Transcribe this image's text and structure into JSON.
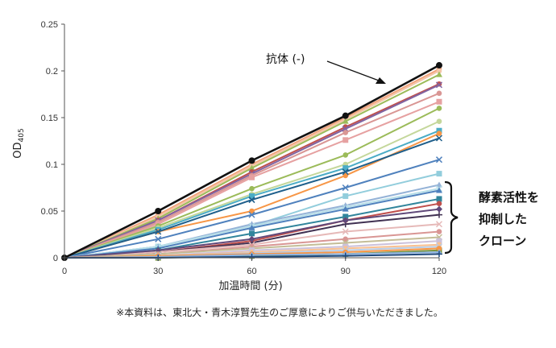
{
  "chart_data": {
    "type": "line",
    "xlabel": "加温時間 (分)",
    "ylabel": "OD405",
    "ylabel_main": "OD",
    "ylabel_sub": "405",
    "x": [
      0,
      30,
      60,
      90,
      120
    ],
    "xlim": [
      0,
      120
    ],
    "ylim": [
      0,
      0.25
    ],
    "xticks": [
      "0",
      "30",
      "60",
      "90",
      "120"
    ],
    "yticks": [
      "0",
      "0.05",
      "0.1",
      "0.15",
      "0.2",
      "0.25"
    ],
    "grid": false,
    "legend": "none",
    "annotations": {
      "antibody_label": "抗体 (-)",
      "bracket_line1": "酵素活性を",
      "bracket_line2": "抑制した",
      "bracket_line3": "クローン"
    },
    "footnote": "※本資料は、東北大・青木淳賢先生のご厚意によりご供与いただきました。",
    "series": [
      {
        "color": "#111111",
        "marker": "circle",
        "emphasis": true,
        "values": [
          0,
          0.05,
          0.104,
          0.152,
          0.206
        ]
      },
      {
        "color": "#f2a37c",
        "marker": "circle",
        "values": [
          0,
          0.046,
          0.1,
          0.15,
          0.202
        ]
      },
      {
        "color": "#f4c6a8",
        "marker": "circle",
        "values": [
          0,
          0.044,
          0.098,
          0.148,
          0.2
        ]
      },
      {
        "color": "#9bbb59",
        "marker": "triangle",
        "values": [
          0,
          0.042,
          0.096,
          0.146,
          0.196
        ]
      },
      {
        "color": "#c0504d",
        "marker": "circle",
        "values": [
          0,
          0.04,
          0.092,
          0.14,
          0.186
        ]
      },
      {
        "color": "#8064a2",
        "marker": "x",
        "values": [
          0,
          0.04,
          0.09,
          0.138,
          0.185
        ]
      },
      {
        "color": "#d99694",
        "marker": "circle",
        "values": [
          0,
          0.038,
          0.088,
          0.134,
          0.176
        ]
      },
      {
        "color": "#e6a1a1",
        "marker": "square",
        "values": [
          0,
          0.036,
          0.086,
          0.126,
          0.167
        ]
      },
      {
        "color": "#9bbb59",
        "marker": "circle",
        "values": [
          0,
          0.034,
          0.074,
          0.11,
          0.16
        ]
      },
      {
        "color": "#c4d79b",
        "marker": "circle",
        "values": [
          0,
          0.032,
          0.068,
          0.1,
          0.146
        ]
      },
      {
        "color": "#4bacc6",
        "marker": "square",
        "values": [
          0,
          0.03,
          0.066,
          0.096,
          0.136
        ]
      },
      {
        "color": "#f79646",
        "marker": "circle",
        "values": [
          0,
          0.028,
          0.05,
          0.088,
          0.133
        ]
      },
      {
        "color": "#1f5f8b",
        "marker": "x",
        "values": [
          0,
          0.028,
          0.062,
          0.092,
          0.128
        ]
      },
      {
        "color": "#4f81bd",
        "marker": "x",
        "values": [
          0,
          0.02,
          0.046,
          0.075,
          0.105
        ]
      },
      {
        "color": "#92cddc",
        "marker": "square",
        "values": [
          0,
          0.012,
          0.034,
          0.066,
          0.09
        ]
      },
      {
        "color": "#95b3d7",
        "marker": "triangle",
        "values": [
          0,
          0.012,
          0.036,
          0.056,
          0.078
        ]
      },
      {
        "color": "#b7dee8",
        "marker": "x",
        "values": [
          0,
          0.012,
          0.034,
          0.054,
          0.074
        ]
      },
      {
        "color": "#4f81bd",
        "marker": "triangle",
        "values": [
          0,
          0.01,
          0.032,
          0.052,
          0.072
        ]
      },
      {
        "color": "#31859c",
        "marker": "square",
        "values": [
          0,
          0.008,
          0.026,
          0.044,
          0.063
        ]
      },
      {
        "color": "#c0504d",
        "marker": "circle",
        "values": [
          0,
          0.006,
          0.018,
          0.04,
          0.058
        ]
      },
      {
        "color": "#403152",
        "marker": "plus",
        "values": [
          0,
          0.006,
          0.016,
          0.036,
          0.046
        ]
      },
      {
        "color": "#e6b9b8",
        "marker": "x",
        "values": [
          0,
          0.006,
          0.014,
          0.028,
          0.036
        ]
      },
      {
        "color": "#60497a",
        "marker": "diamond",
        "values": [
          0,
          0.008,
          0.02,
          0.04,
          0.052
        ]
      },
      {
        "color": "#d99694",
        "marker": "circle",
        "values": [
          0,
          0.004,
          0.012,
          0.02,
          0.028
        ]
      },
      {
        "color": "#c4bd97",
        "marker": "x",
        "values": [
          0,
          0.004,
          0.01,
          0.016,
          0.022
        ]
      },
      {
        "color": "#ccc1da",
        "marker": "square",
        "values": [
          0,
          0.002,
          0.008,
          0.012,
          0.018
        ]
      },
      {
        "color": "#fac090",
        "marker": "circle",
        "values": [
          0,
          0.002,
          0.006,
          0.01,
          0.014
        ]
      },
      {
        "color": "#b9cde5",
        "marker": "x",
        "values": [
          0,
          0.002,
          0.005,
          0.008,
          0.012
        ]
      },
      {
        "color": "#77933c",
        "marker": "square",
        "values": [
          0,
          0.0,
          0.002,
          0.004,
          0.008
        ]
      },
      {
        "color": "#f79646",
        "marker": "circle",
        "values": [
          0,
          0.002,
          0.004,
          0.006,
          0.01
        ]
      },
      {
        "color": "#8db3e2",
        "marker": "triangle",
        "values": [
          0,
          0.001,
          0.003,
          0.004,
          0.006
        ]
      },
      {
        "color": "#1f497d",
        "marker": "plus",
        "values": [
          0,
          0.0,
          0.001,
          0.002,
          0.004
        ]
      }
    ]
  }
}
